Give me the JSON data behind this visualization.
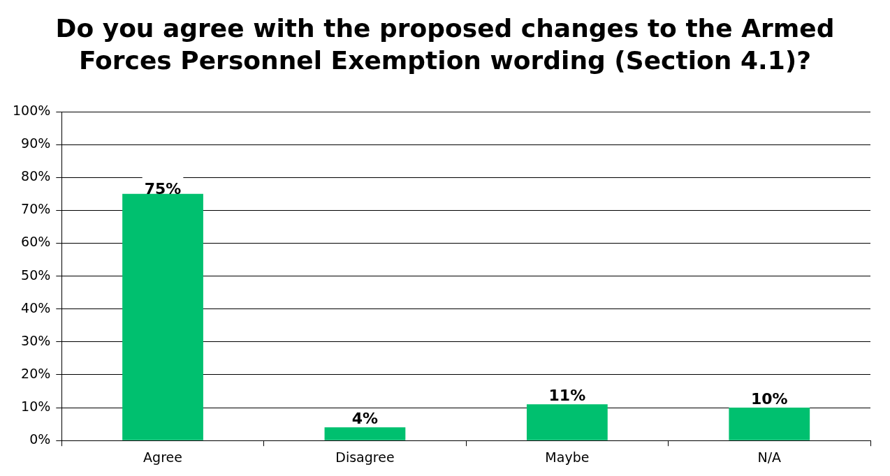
{
  "chart_data": {
    "type": "bar",
    "title": "Do you agree with the proposed changes to the Armed Forces Personnel Exemption wording (Section 4.1)?",
    "categories": [
      "Agree",
      "Disagree",
      "Maybe",
      "N/A"
    ],
    "values": [
      75,
      4,
      11,
      10
    ],
    "value_labels": [
      "75%",
      "4%",
      "11%",
      "10%"
    ],
    "color": "#00c06f",
    "ylim": [
      0,
      100
    ],
    "yticks": [
      {
        "value": 0,
        "label": "0%"
      },
      {
        "value": 10,
        "label": "10%"
      },
      {
        "value": 20,
        "label": "20%"
      },
      {
        "value": 30,
        "label": "30%"
      },
      {
        "value": 40,
        "label": "40%"
      },
      {
        "value": 50,
        "label": "50%"
      },
      {
        "value": 60,
        "label": "60%"
      },
      {
        "value": 70,
        "label": "70%"
      },
      {
        "value": 80,
        "label": "80%"
      },
      {
        "value": 90,
        "label": "90%"
      },
      {
        "value": 100,
        "label": "100%"
      }
    ],
    "grid": "y",
    "legend": false
  }
}
